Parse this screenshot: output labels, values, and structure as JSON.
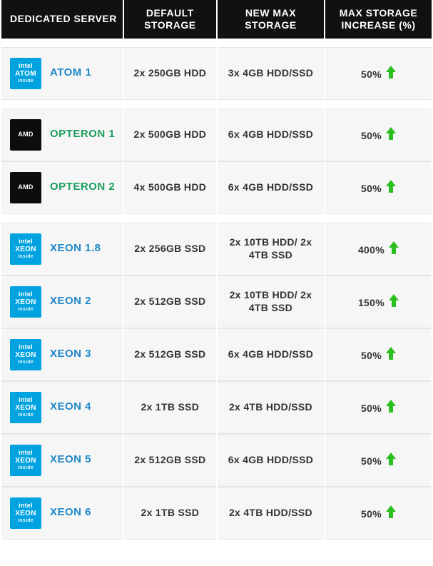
{
  "colors": {
    "header_bg": "#111111",
    "header_text": "#ffffff",
    "cell_bg": "#f6f6f6",
    "cell_border": "#e5e5e5",
    "intel_blue": "#00a3e0",
    "amd_black": "#0d0d0d",
    "opteron_green": "#1a9e5c",
    "xeon_blue": "#1e87c8",
    "arrow_green": "#2bbf1f",
    "text": "#333333"
  },
  "headers": {
    "server": "DEDICATED SERVER",
    "default_storage": "DEFAULT STORAGE",
    "new_max_storage": "NEW MAX STORAGE",
    "increase": "MAX STORAGE INCREASE (%)"
  },
  "groups": [
    {
      "rows": [
        {
          "badge": {
            "brand": "intel",
            "chip": "ATOM",
            "sub": "inside",
            "bg_key": "intel_blue"
          },
          "name": "ATOM 1",
          "name_color_key": "xeon_blue",
          "default_storage": "2x 250GB HDD",
          "new_max_storage": "3x 4GB HDD/SSD",
          "increase_pct": "50%"
        }
      ]
    },
    {
      "rows": [
        {
          "badge": {
            "brand": "AMD",
            "chip": "",
            "sub": "",
            "bg_key": "amd_black"
          },
          "name": "OPTERON 1",
          "name_color_key": "opteron_green",
          "default_storage": "2x 500GB HDD",
          "new_max_storage": "6x 4GB HDD/SSD",
          "increase_pct": "50%"
        },
        {
          "badge": {
            "brand": "AMD",
            "chip": "",
            "sub": "",
            "bg_key": "amd_black"
          },
          "name": "OPTERON 2",
          "name_color_key": "opteron_green",
          "default_storage": "4x 500GB HDD",
          "new_max_storage": "6x 4GB HDD/SSD",
          "increase_pct": "50%"
        }
      ]
    },
    {
      "rows": [
        {
          "badge": {
            "brand": "intel",
            "chip": "XEON",
            "sub": "inside",
            "bg_key": "intel_blue"
          },
          "name": "XEON 1.8",
          "name_color_key": "xeon_blue",
          "default_storage": "2x 256GB SSD",
          "new_max_storage": "2x 10TB HDD/ 2x 4TB SSD",
          "increase_pct": "400%"
        },
        {
          "badge": {
            "brand": "intel",
            "chip": "XEON",
            "sub": "inside",
            "bg_key": "intel_blue"
          },
          "name": "XEON 2",
          "name_color_key": "xeon_blue",
          "default_storage": "2x 512GB SSD",
          "new_max_storage": "2x 10TB HDD/ 2x 4TB SSD",
          "increase_pct": "150%"
        },
        {
          "badge": {
            "brand": "intel",
            "chip": "XEON",
            "sub": "inside",
            "bg_key": "intel_blue"
          },
          "name": "XEON 3",
          "name_color_key": "xeon_blue",
          "default_storage": "2x 512GB SSD",
          "new_max_storage": "6x 4GB HDD/SSD",
          "increase_pct": "50%"
        },
        {
          "badge": {
            "brand": "intel",
            "chip": "XEON",
            "sub": "inside",
            "bg_key": "intel_blue"
          },
          "name": "XEON 4",
          "name_color_key": "xeon_blue",
          "default_storage": "2x 1TB SSD",
          "new_max_storage": "2x 4TB HDD/SSD",
          "increase_pct": "50%"
        },
        {
          "badge": {
            "brand": "intel",
            "chip": "XEON",
            "sub": "inside",
            "bg_key": "intel_blue"
          },
          "name": "XEON 5",
          "name_color_key": "xeon_blue",
          "default_storage": "2x 512GB SSD",
          "new_max_storage": "6x 4GB HDD/SSD",
          "increase_pct": "50%"
        },
        {
          "badge": {
            "brand": "intel",
            "chip": "XEON",
            "sub": "inside",
            "bg_key": "intel_blue"
          },
          "name": "XEON 6",
          "name_color_key": "xeon_blue",
          "default_storage": "2x 1TB SSD",
          "new_max_storage": "2x 4TB HDD/SSD",
          "increase_pct": "50%"
        }
      ]
    }
  ]
}
